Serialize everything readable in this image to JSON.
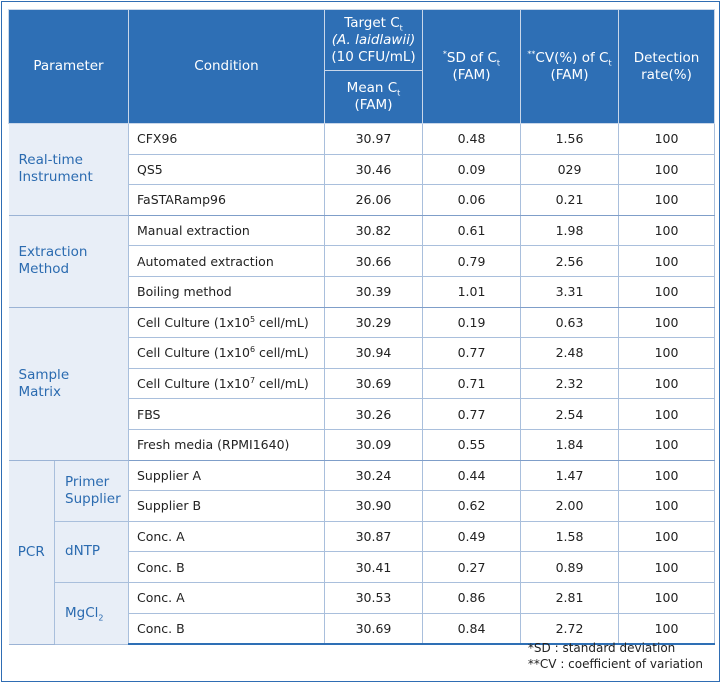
{
  "header": {
    "parameter": "Parameter",
    "condition": "Condition",
    "target_line1": "Target C",
    "target_sub": "t",
    "target_organism": "(A. laidlawii)",
    "target_conc": "(10 CFU/mL)",
    "mean_main": "Mean C",
    "mean_sub": "t",
    "mean_unit": "(FAM)",
    "sd_prefix": "*",
    "sd_main": "SD of C",
    "sd_sub": "t",
    "sd_unit": "(FAM)",
    "cv_prefix": "**",
    "cv_main": "CV(%) of C",
    "cv_sub": "t",
    "cv_unit": "(FAM)",
    "detection_line1": "Detection",
    "detection_line2": "rate(%)"
  },
  "groups": {
    "realtime": {
      "label_line1": "Real-time",
      "label_line2": "Instrument",
      "rows": [
        {
          "condition": "CFX96",
          "mean": "30.97",
          "sd": "0.48",
          "cv": "1.56",
          "rate": "100"
        },
        {
          "condition": "QS5",
          "mean": "30.46",
          "sd": "0.09",
          "cv": "029",
          "rate": "100"
        },
        {
          "condition": "FaSTARamp96",
          "mean": "26.06",
          "sd": "0.06",
          "cv": "0.21",
          "rate": "100"
        }
      ]
    },
    "extraction": {
      "label_line1": "Extraction",
      "label_line2": "Method",
      "rows": [
        {
          "condition": "Manual extraction",
          "mean": "30.82",
          "sd": "0.61",
          "cv": "1.98",
          "rate": "100"
        },
        {
          "condition": "Automated extraction",
          "mean": "30.66",
          "sd": "0.79",
          "cv": "2.56",
          "rate": "100"
        },
        {
          "condition": "Boiling method",
          "mean": "30.39",
          "sd": "1.01",
          "cv": "3.31",
          "rate": "100"
        }
      ]
    },
    "matrix": {
      "label_line1": "Sample",
      "label_line2": "Matrix",
      "cell_prefix": "Cell Culture (1x10",
      "cell_suffix": " cell/mL)",
      "rows": [
        {
          "exp": "5",
          "mean": "30.29",
          "sd": "0.19",
          "cv": "0.63",
          "rate": "100"
        },
        {
          "exp": "6",
          "mean": "30.94",
          "sd": "0.77",
          "cv": "2.48",
          "rate": "100"
        },
        {
          "exp": "7",
          "mean": "30.69",
          "sd": "0.71",
          "cv": "2.32",
          "rate": "100"
        },
        {
          "condition": "FBS",
          "mean": "30.26",
          "sd": "0.77",
          "cv": "2.54",
          "rate": "100"
        },
        {
          "condition": "Fresh media (RPMI1640)",
          "mean": "30.09",
          "sd": "0.55",
          "cv": "1.84",
          "rate": "100"
        }
      ]
    },
    "pcr": {
      "label": "PCR",
      "primer": {
        "label_line1": "Primer",
        "label_line2": "Supplier",
        "rows": [
          {
            "condition": "Supplier A",
            "mean": "30.24",
            "sd": "0.44",
            "cv": "1.47",
            "rate": "100"
          },
          {
            "condition": "Supplier B",
            "mean": "30.90",
            "sd": "0.62",
            "cv": "2.00",
            "rate": "100"
          }
        ]
      },
      "dntp": {
        "label": "dNTP",
        "rows": [
          {
            "condition": "Conc. A",
            "mean": "30.87",
            "sd": "0.49",
            "cv": "1.58",
            "rate": "100"
          },
          {
            "condition": "Conc. B",
            "mean": "30.41",
            "sd": "0.27",
            "cv": "0.89",
            "rate": "100"
          }
        ]
      },
      "mgcl": {
        "label_main": "MgCl",
        "label_sub": "2",
        "rows": [
          {
            "condition": "Conc. A",
            "mean": "30.53",
            "sd": "0.86",
            "cv": "2.81",
            "rate": "100"
          },
          {
            "condition": "Conc. B",
            "mean": "30.69",
            "sd": "0.84",
            "cv": "2.72",
            "rate": "100"
          }
        ]
      }
    }
  },
  "footnotes": {
    "sd": "*SD : standard  deviation",
    "cv": "**CV : coefficient  of variation"
  }
}
